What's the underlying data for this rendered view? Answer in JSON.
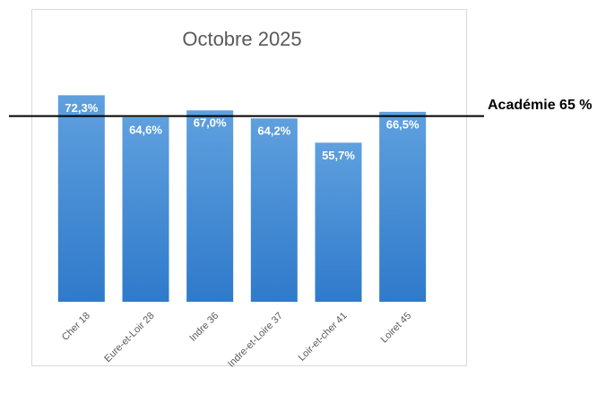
{
  "chart_data": {
    "type": "bar",
    "title": "Octobre 2025",
    "categories": [
      "Cher 18",
      "Eure-et-Loir 28",
      "Indre 36",
      "Indre-et-Loire 37",
      "Loir-et-cher 41",
      "Loiret 45"
    ],
    "values": [
      72.3,
      64.6,
      67.0,
      64.2,
      55.7,
      66.5
    ],
    "value_labels": [
      "72,3%",
      "64,6%",
      "67,0%",
      "64,2%",
      "55,7%",
      "66,5%"
    ],
    "color": "#4a8fd8",
    "ylim": [
      0,
      100
    ],
    "reference": {
      "label": "Académie 65 %",
      "value": 65
    }
  }
}
